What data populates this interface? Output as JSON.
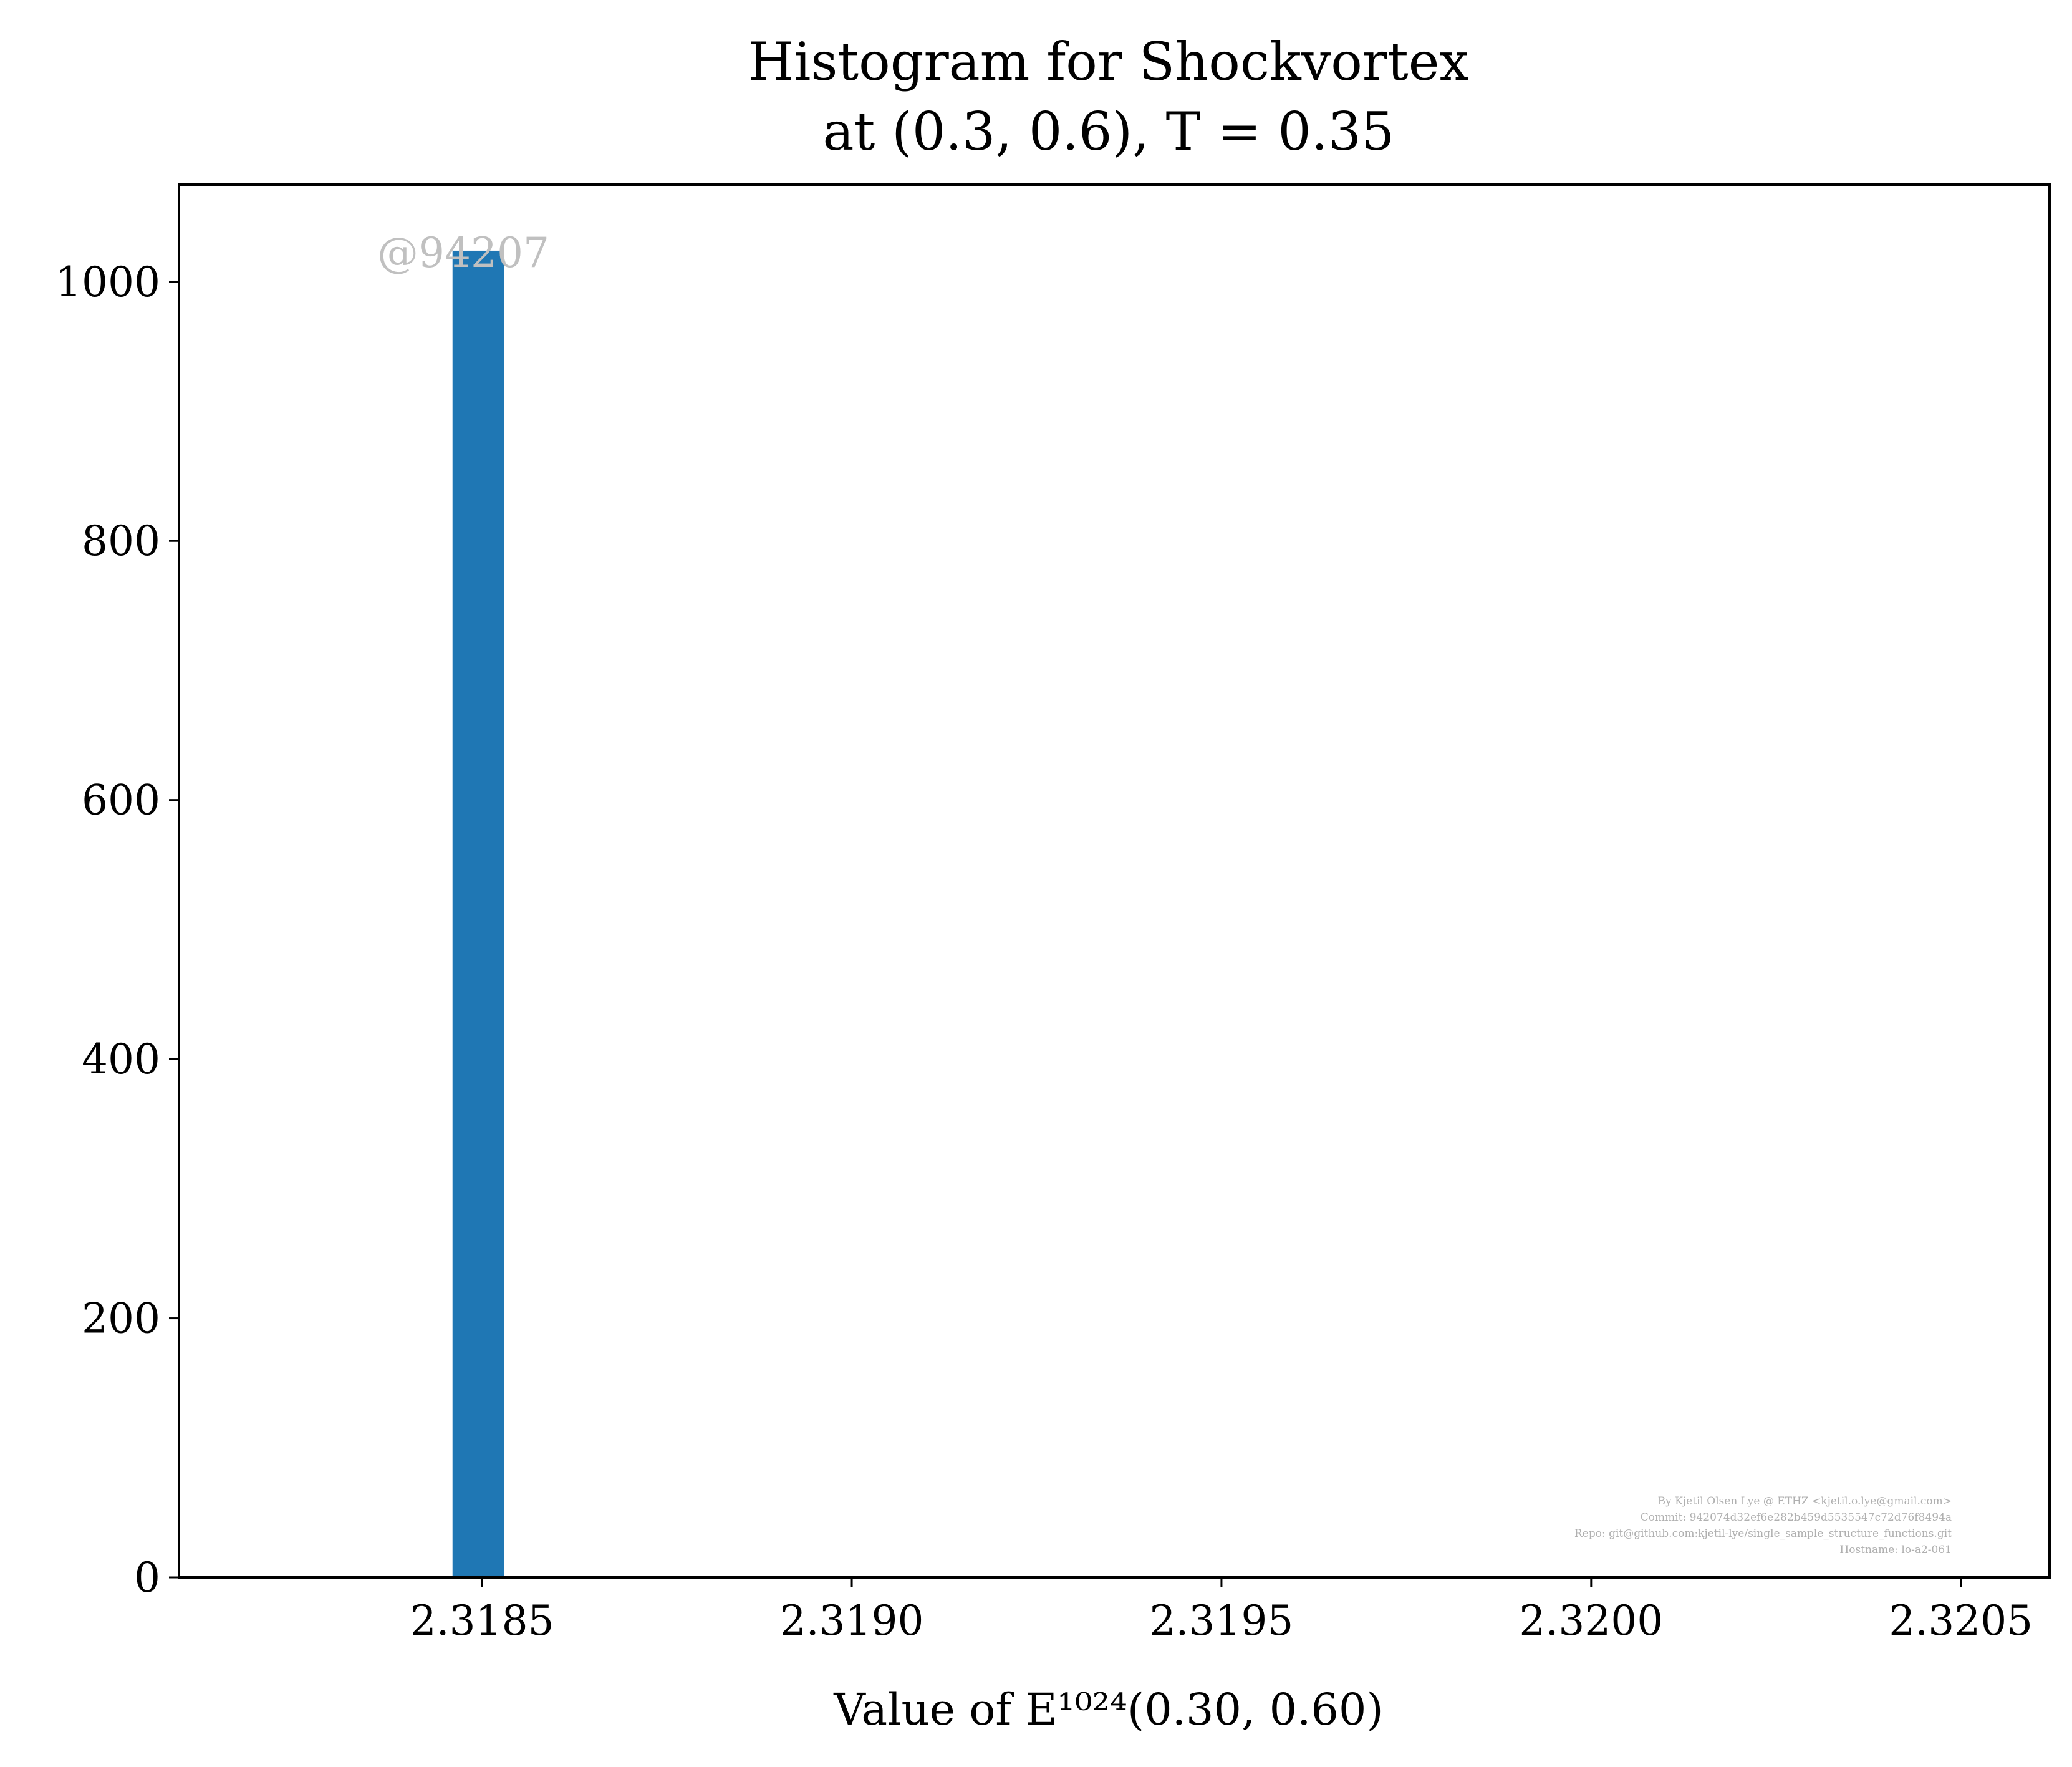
{
  "chart_data": {
    "type": "bar",
    "title": "Histogram for Shockvortex",
    "subtitle": "at (0.3, 0.6), T = 0.35",
    "xlabel": "Value of E¹⁰²⁴(0.30, 0.60)",
    "ylabel": "",
    "xlim": [
      2.31809,
      2.32062
    ],
    "ylim": [
      0,
      1075
    ],
    "xticks": [
      2.3185,
      2.319,
      2.3195,
      2.32,
      2.3205
    ],
    "xtick_labels": [
      "2.3185",
      "2.3190",
      "2.3195",
      "2.3200",
      "2.3205"
    ],
    "yticks": [
      0,
      200,
      400,
      600,
      800,
      1000
    ],
    "ytick_labels": [
      "0",
      "200",
      "400",
      "600",
      "800",
      "1000"
    ],
    "grid": false,
    "bars": [
      {
        "x0": 2.31846,
        "x1": 2.31853,
        "count": 1024
      }
    ],
    "bar_color": "#1f77b4",
    "watermark": "@94207",
    "credits": [
      "By Kjetil Olsen Lye @ ETHZ <kjetil.o.lye@gmail.com>",
      "Commit: 942074d32ef6e282b459d5535547c72d76f8494a",
      "Repo: git@github.com:kjetil-lye/single_sample_structure_functions.git",
      "Hostname: lo-a2-061"
    ]
  }
}
